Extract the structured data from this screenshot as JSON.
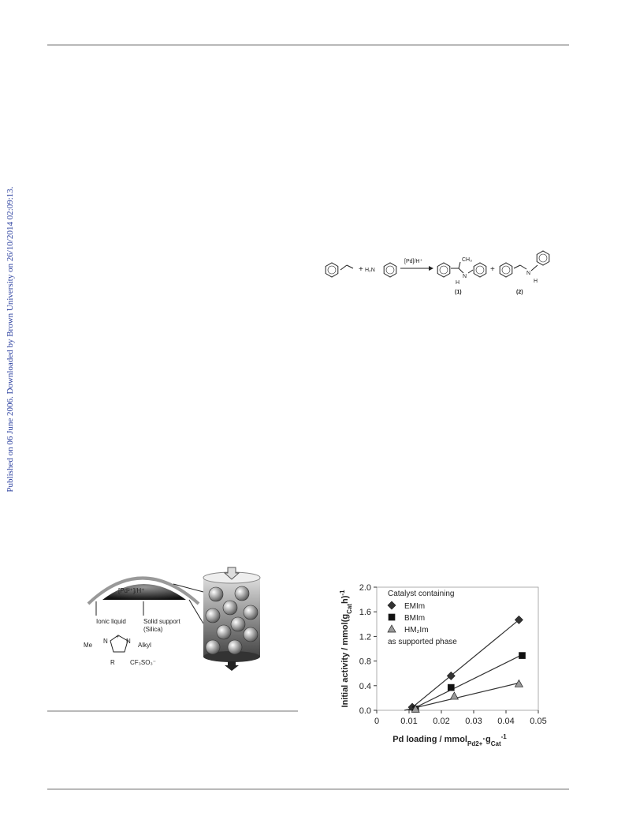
{
  "sidebar": "Published on 06 June 2006. Downloaded by Brown University on 26/10/2014 02:09:13.",
  "scheme": {
    "amine": "H₂N",
    "catalyst": "[Pd]/H⁺",
    "plus": "+",
    "methyl": "CH₃",
    "n": "N",
    "h": "H",
    "label1": "(1)",
    "label2": "(2)"
  },
  "diagram": {
    "catalyst": "[Pd²⁺]/H⁺",
    "ionic_liquid": "Ionic liquid",
    "support": [
      "Solid support",
      "(Silica)"
    ],
    "methyl": "Me",
    "n": "N",
    "charge": "+",
    "alkyl": "Alkyl",
    "r": "R",
    "anion": "CF₃SO₃⁻"
  },
  "chart_data": {
    "type": "scatter",
    "xlabel": [
      "Pd loading / mmol",
      "Pd2+",
      "·g",
      "Cat",
      "-1"
    ],
    "ylabel": [
      "Initial activity / mmol(g",
      "Cat",
      "h)",
      "-1"
    ],
    "legend_title": "Catalyst containing",
    "legend_note": "as supported phase",
    "xlim": [
      0,
      0.05
    ],
    "xticks": [
      0,
      0.01,
      0.02,
      0.03,
      0.04,
      0.05
    ],
    "ylim": [
      0,
      2
    ],
    "yticks": [
      {
        "value": 0,
        "label": "0.0"
      },
      0.4,
      0.8,
      1.2,
      1.6,
      {
        "value": 2,
        "label": "2.0"
      }
    ],
    "trendline": true,
    "series": [
      {
        "name": "EMIm",
        "marker": "diamond",
        "color": "#333333",
        "x": [
          0.011,
          0.023,
          0.044
        ],
        "values": [
          0.05,
          0.56,
          1.47
        ]
      },
      {
        "name": "BMIm",
        "marker": "square",
        "color": "#111111",
        "x": [
          0.012,
          0.023,
          0.045
        ],
        "values": [
          0.02,
          0.37,
          0.89
        ]
      },
      {
        "name": "HM₂Im",
        "marker": "triangle",
        "color": "#9a9a9a",
        "x": [
          0.012,
          0.024,
          0.044
        ],
        "values": [
          0.02,
          0.23,
          0.43
        ]
      }
    ]
  }
}
